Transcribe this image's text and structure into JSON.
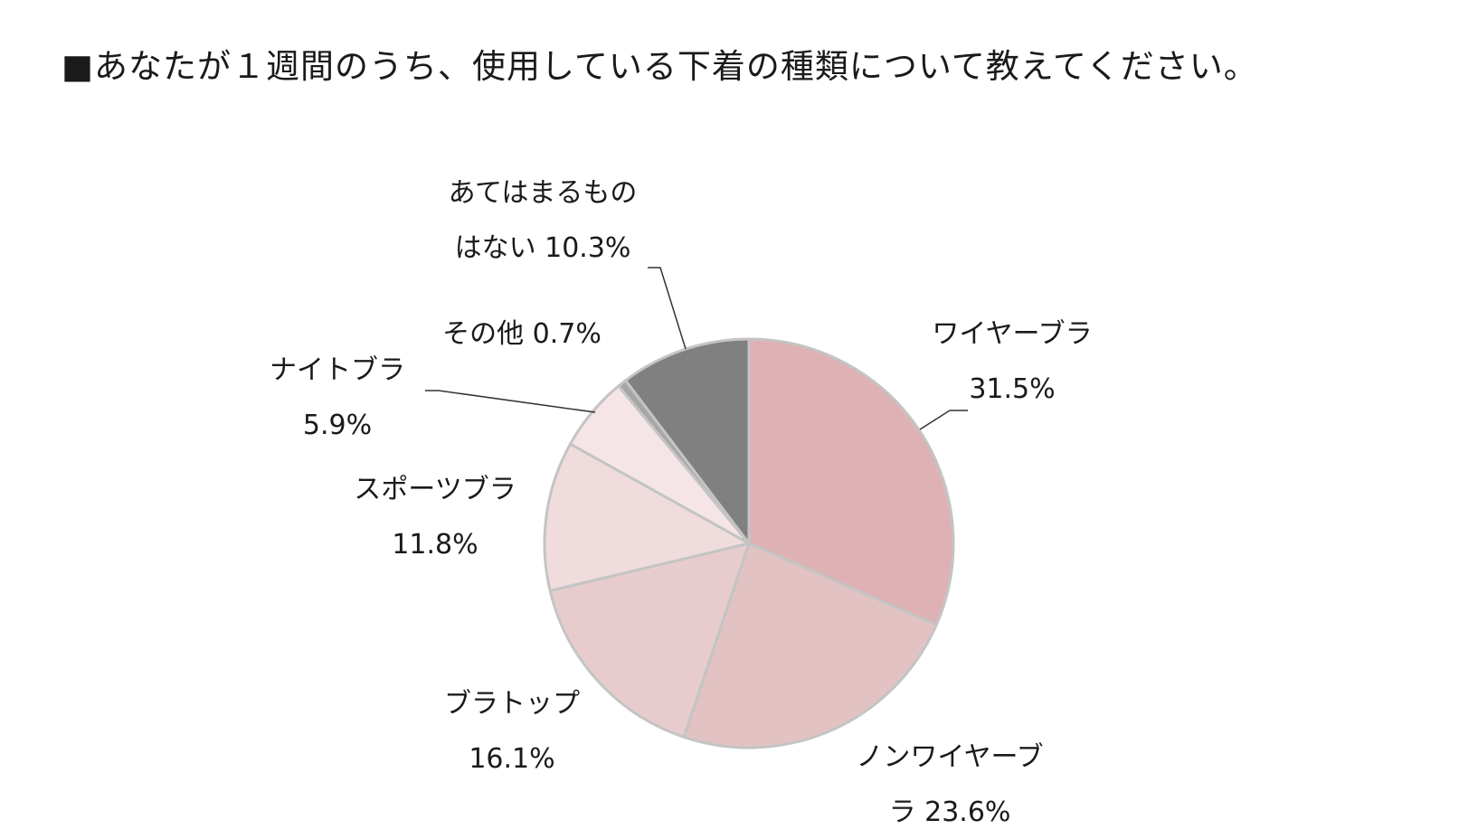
{
  "title": "■あなたが１週間のうち、使用している下着の種類について教えてください。",
  "chart_data": {
    "type": "pie",
    "title": "■あなたが１週間のうち、使用している下着の種類について教えてください。",
    "start": "12 o'clock, clockwise",
    "slices": [
      {
        "label_lines": [
          "ワイヤーブラ",
          "31.5%"
        ],
        "value": 31.5,
        "color": "#deb2b4"
      },
      {
        "label_lines": [
          "ノンワイヤーブ",
          "ラ  23.6%"
        ],
        "value": 23.6,
        "color": "#e2c2c3"
      },
      {
        "label_lines": [
          "ブラトップ",
          "16.1%"
        ],
        "value": 16.1,
        "color": "#e8cccd"
      },
      {
        "label_lines": [
          "スポーツブラ",
          "11.8%"
        ],
        "value": 11.8,
        "color": "#f0dcdd"
      },
      {
        "label_lines": [
          "ナイトブラ",
          "5.9%"
        ],
        "value": 5.9,
        "color": "#f5e5e6"
      },
      {
        "label_lines": [
          "その他 0.7%"
        ],
        "value": 0.7,
        "color": "#a6a6a6"
      },
      {
        "label_lines": [
          "あてはまるもの",
          "はない 10.3%"
        ],
        "value": 10.3,
        "color": "#808080"
      }
    ],
    "slice_border_color": "#c4c4c4",
    "leader_line_color": "#333333",
    "legend": "none"
  }
}
